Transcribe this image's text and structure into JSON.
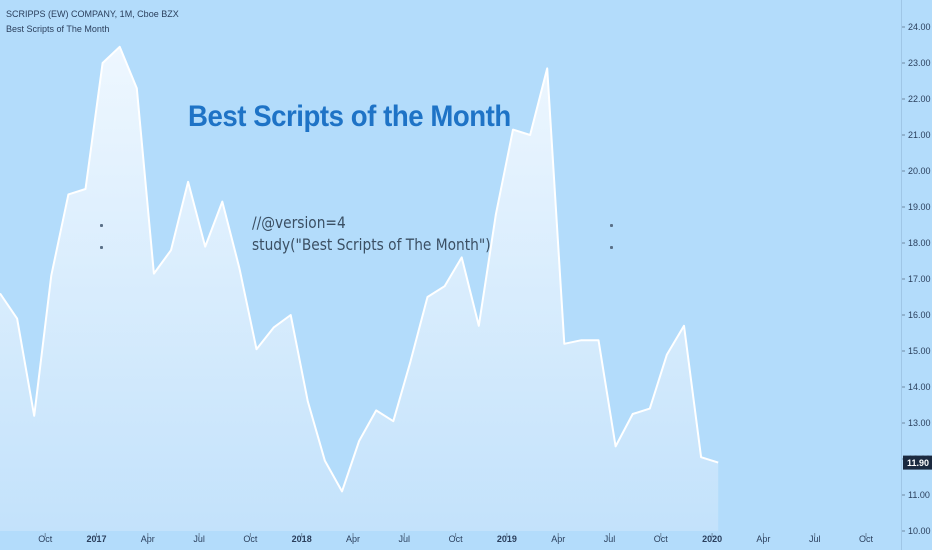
{
  "legend": {
    "line1": "SCRIPPS (EW) COMPANY, 1M, Cboe BZX",
    "line2": "Best Scripts of The Month"
  },
  "headline": "Best Scripts of the Month",
  "code": {
    "line1": "//@version=4",
    "line2": "study(\"Best Scripts of The Month\")"
  },
  "colors": {
    "background": "#b3dcfb",
    "line": "#ffffff",
    "fill_top": "#eef7ff",
    "fill_bottom": "#c3e2fb",
    "headline": "#1e73c6",
    "last_price_badge": "#1b2a40"
  },
  "chart_data": {
    "type": "area",
    "ylim": [
      10.0,
      24.75
    ],
    "yticks": [
      10.0,
      11.0,
      12.0,
      13.0,
      14.0,
      15.0,
      16.0,
      17.0,
      18.0,
      19.0,
      20.0,
      21.0,
      22.0,
      23.0,
      24.0
    ],
    "ytick_labels": [
      "10.00",
      "11.00",
      "12.00",
      "13.00",
      "14.00",
      "15.00",
      "16.00",
      "17.00",
      "18.00",
      "19.00",
      "20.00",
      "21.00",
      "22.00",
      "23.00",
      "24.00"
    ],
    "last_value": 11.9,
    "last_value_label": "11.90",
    "x_start_month": "2016-08",
    "xtick_labels": [
      {
        "label": "Oct",
        "month_index": 2,
        "bold": false
      },
      {
        "label": "2017",
        "month_index": 5,
        "bold": true
      },
      {
        "label": "Apr",
        "month_index": 8,
        "bold": false
      },
      {
        "label": "Jul",
        "month_index": 11,
        "bold": false
      },
      {
        "label": "Oct",
        "month_index": 14,
        "bold": false
      },
      {
        "label": "2018",
        "month_index": 17,
        "bold": true
      },
      {
        "label": "Apr",
        "month_index": 20,
        "bold": false
      },
      {
        "label": "Jul",
        "month_index": 23,
        "bold": false
      },
      {
        "label": "Oct",
        "month_index": 26,
        "bold": false
      },
      {
        "label": "2019",
        "month_index": 29,
        "bold": true
      },
      {
        "label": "Apr",
        "month_index": 32,
        "bold": false
      },
      {
        "label": "Jul",
        "month_index": 35,
        "bold": false
      },
      {
        "label": "Oct",
        "month_index": 38,
        "bold": false
      },
      {
        "label": "2020",
        "month_index": 41,
        "bold": true
      },
      {
        "label": "Apr",
        "month_index": 44,
        "bold": false
      },
      {
        "label": "Jul",
        "month_index": 47,
        "bold": false
      },
      {
        "label": "Oct",
        "month_index": 50,
        "bold": false
      }
    ],
    "series": [
      {
        "values": [
          16.6,
          15.9,
          13.2,
          17.1,
          19.35,
          19.5,
          23.0,
          23.45,
          22.3,
          17.15,
          17.8,
          19.7,
          17.9,
          19.15,
          17.3,
          15.05,
          15.65,
          16.0,
          13.6,
          11.95,
          11.1,
          12.5,
          13.35,
          13.05,
          14.7,
          16.5,
          16.8,
          17.6,
          15.7,
          18.8,
          21.15,
          21.0,
          22.85,
          15.2,
          15.3,
          15.3,
          12.35,
          13.25,
          13.4,
          14.9,
          15.7,
          12.05,
          11.9
        ]
      }
    ]
  }
}
